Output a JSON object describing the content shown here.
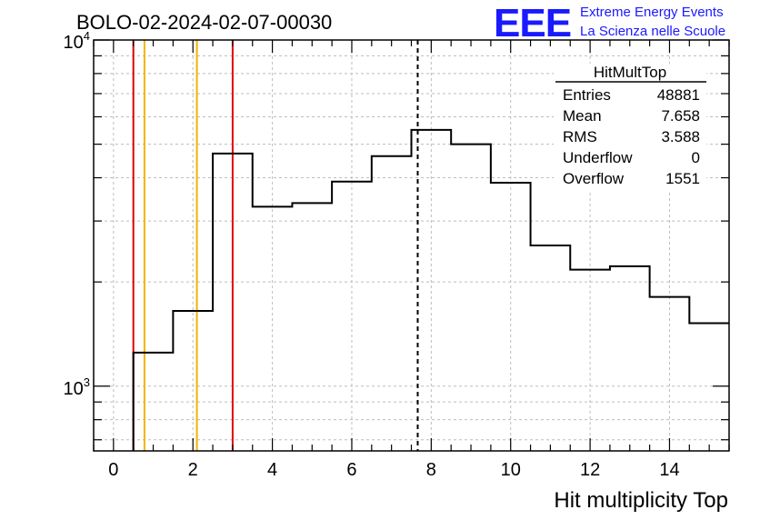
{
  "header": {
    "run_title": "BOLO-02-2024-02-07-00030",
    "logo_mark": "EEE",
    "logo_line1": "Extreme Energy Events",
    "logo_line2": "La Scienza nelle Scuole"
  },
  "stats_box": {
    "title": "HitMultTop",
    "rows": [
      {
        "label": "Entries",
        "value": "48881"
      },
      {
        "label": "Mean",
        "value": "7.658"
      },
      {
        "label": "RMS",
        "value": "3.588"
      },
      {
        "label": "Underflow",
        "value": "0"
      },
      {
        "label": "Overflow",
        "value": "1551"
      }
    ]
  },
  "chart_data": {
    "type": "histogram",
    "xlabel": "Hit multiplicity Top",
    "ylabel": "",
    "xlim": [
      -0.5,
      15.5
    ],
    "ylim": [
      650,
      10000
    ],
    "log_y": true,
    "grid": true,
    "x_ticks": [
      0,
      2,
      4,
      6,
      8,
      10,
      12,
      14
    ],
    "y_tick_labels": [
      {
        "value": 1000,
        "base": "10",
        "exp": "3"
      },
      {
        "value": 10000,
        "base": "10",
        "exp": "4"
      }
    ],
    "bin_edges": [
      0.5,
      1.5,
      2.5,
      3.5,
      4.5,
      5.5,
      6.5,
      7.5,
      8.5,
      9.5,
      10.5,
      11.5,
      12.5,
      13.5,
      14.5,
      15.5
    ],
    "counts": [
      1250,
      1650,
      4700,
      3300,
      3380,
      3900,
      4620,
      5500,
      5000,
      3870,
      2550,
      2170,
      2220,
      1810,
      1520
    ],
    "vertical_lines": [
      {
        "x": 0.5,
        "color": "#e00000",
        "style": "solid"
      },
      {
        "x": 0.78,
        "color": "#f0b400",
        "style": "solid"
      },
      {
        "x": 2.1,
        "color": "#f0b400",
        "style": "solid"
      },
      {
        "x": 3.0,
        "color": "#e00000",
        "style": "solid"
      },
      {
        "x": 7.66,
        "color": "#000000",
        "style": "dashed"
      }
    ],
    "line_color": "#000000"
  }
}
